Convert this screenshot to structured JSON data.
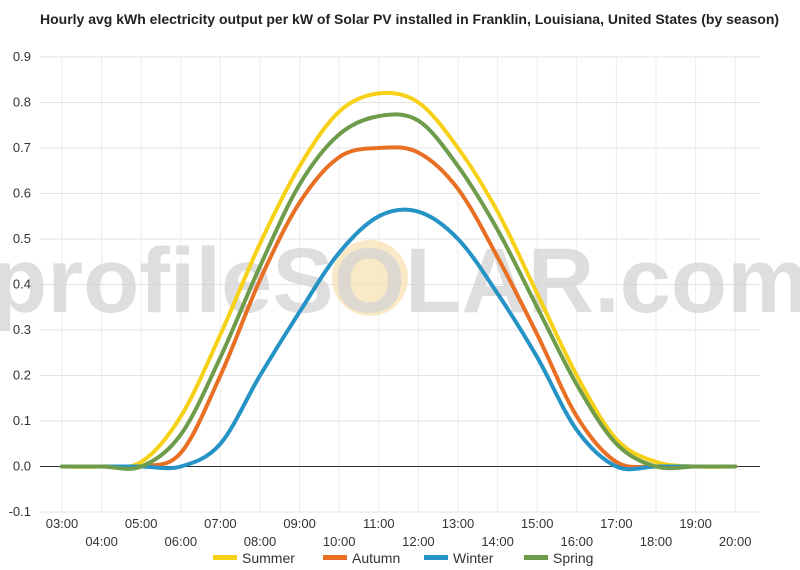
{
  "chart_data": {
    "type": "line",
    "title": "Hourly avg kWh electricity output per kW of Solar PV installed in Franklin, Louisiana, United States (by season)",
    "xlabel": "",
    "ylabel": "",
    "x": [
      "03:00",
      "04:00",
      "05:00",
      "06:00",
      "07:00",
      "08:00",
      "09:00",
      "10:00",
      "11:00",
      "12:00",
      "13:00",
      "14:00",
      "15:00",
      "16:00",
      "17:00",
      "18:00",
      "19:00",
      "20:00"
    ],
    "ylim": [
      -0.1,
      0.9
    ],
    "yticks": [
      "-0.1",
      "0.0",
      "0.1",
      "0.2",
      "0.3",
      "0.4",
      "0.5",
      "0.6",
      "0.7",
      "0.8",
      "0.9"
    ],
    "grid": true,
    "legend_position": "bottom",
    "series": [
      {
        "name": "Summer",
        "color": "#f7d117",
        "values": [
          0.0,
          0.0,
          0.01,
          0.11,
          0.29,
          0.49,
          0.66,
          0.78,
          0.82,
          0.8,
          0.7,
          0.56,
          0.38,
          0.2,
          0.06,
          0.01,
          0.0,
          0.0
        ]
      },
      {
        "name": "Autumn",
        "color": "#e87025",
        "values": [
          0.0,
          0.0,
          0.0,
          0.03,
          0.2,
          0.41,
          0.58,
          0.68,
          0.7,
          0.69,
          0.61,
          0.46,
          0.29,
          0.11,
          0.01,
          0.0,
          0.0,
          0.0
        ]
      },
      {
        "name": "Winter",
        "color": "#2593c5",
        "values": [
          0.0,
          0.0,
          0.0,
          0.0,
          0.05,
          0.2,
          0.34,
          0.47,
          0.55,
          0.56,
          0.5,
          0.38,
          0.24,
          0.08,
          0.0,
          0.0,
          0.0,
          0.0
        ]
      },
      {
        "name": "Spring",
        "color": "#6e9c4b",
        "values": [
          0.0,
          0.0,
          0.0,
          0.07,
          0.24,
          0.44,
          0.62,
          0.73,
          0.77,
          0.76,
          0.66,
          0.52,
          0.35,
          0.18,
          0.05,
          0.0,
          0.0,
          0.0
        ]
      }
    ]
  },
  "watermark": {
    "text": "profileSOLAR.com"
  }
}
